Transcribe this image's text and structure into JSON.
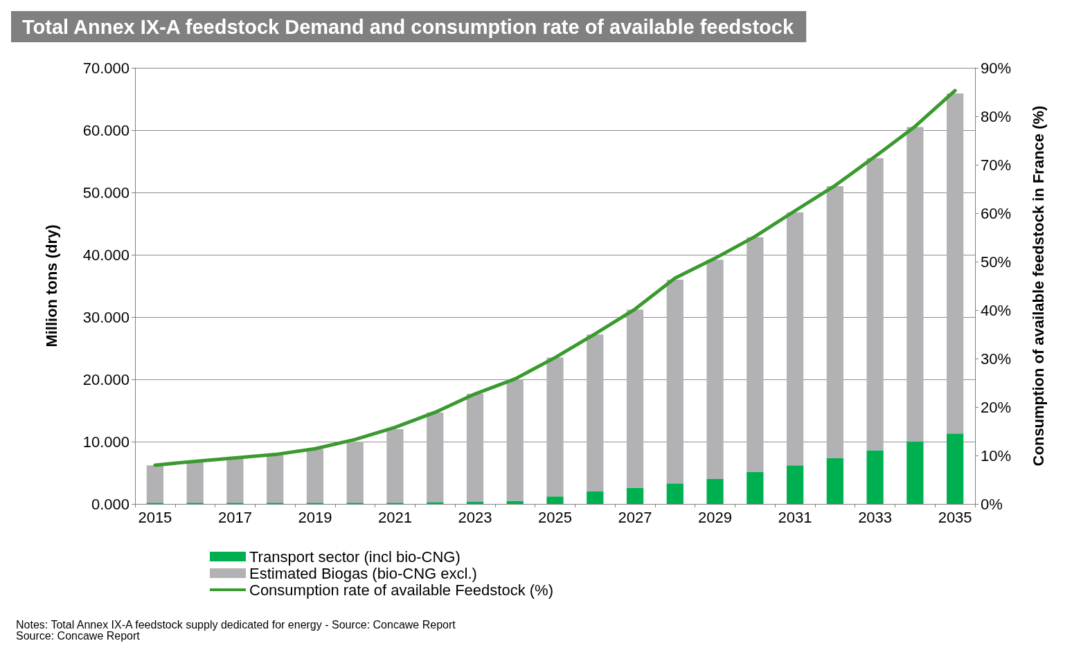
{
  "chart_data": {
    "type": "bar",
    "title": "Total Annex IX-A feedstock Demand and consumption rate of available feedstock",
    "ylabel": "Million tons (dry)",
    "y2label": "Consumption of available feedstock in France (%)",
    "categories": [
      "2015",
      null,
      "2017",
      null,
      "2019",
      null,
      "2021",
      null,
      "2023",
      null,
      "2025",
      null,
      "2027",
      null,
      "2029",
      null,
      "2031",
      null,
      "2033",
      null,
      "2035"
    ],
    "stacked": true,
    "series": [
      {
        "name": "Transport sector (incl bio-CNG)",
        "color": "#00b050",
        "values": [
          0.2,
          0.2,
          0.2,
          0.2,
          0.2,
          0.2,
          0.2,
          0.3,
          0.4,
          0.5,
          1.2,
          2.0,
          2.6,
          3.3,
          4.0,
          5.1,
          6.2,
          7.4,
          8.6,
          10.0,
          11.3
        ]
      },
      {
        "name": "Estimated Biogas (bio-CNG excl.)",
        "color": "#b2b2b4",
        "values": [
          6.0,
          6.5,
          7.1,
          7.7,
          8.6,
          9.8,
          11.8,
          14.4,
          17.3,
          19.5,
          22.3,
          25.2,
          28.6,
          32.7,
          35.2,
          37.7,
          40.6,
          43.6,
          46.9,
          50.5,
          54.6
        ]
      },
      {
        "name": "Consumption rate of available Feedstock (%)",
        "type": "line",
        "axis": "y2",
        "color": "#3a9a2e",
        "values": [
          8.0,
          8.8,
          9.5,
          10.2,
          11.4,
          13.3,
          15.8,
          18.9,
          22.7,
          25.8,
          30.2,
          35.1,
          40.2,
          46.6,
          50.7,
          55.2,
          60.5,
          65.7,
          71.7,
          77.9,
          85.3
        ]
      }
    ],
    "ylim": [
      0,
      70
    ],
    "yticks": [
      {
        "value": 0,
        "label": "0.000"
      },
      {
        "value": 10,
        "label": "10.000"
      },
      {
        "value": 20,
        "label": "20.000"
      },
      {
        "value": 30,
        "label": "30.000"
      },
      {
        "value": 40,
        "label": "40.000"
      },
      {
        "value": 50,
        "label": "50.000"
      },
      {
        "value": 60,
        "label": "60.000"
      },
      {
        "value": 70,
        "label": "70.000"
      }
    ],
    "y2lim": [
      0,
      90
    ],
    "y2ticks": [
      {
        "value": 0,
        "label": "0%"
      },
      {
        "value": 10,
        "label": "10%"
      },
      {
        "value": 20,
        "label": "20%"
      },
      {
        "value": 30,
        "label": "30%"
      },
      {
        "value": 40,
        "label": "40%"
      },
      {
        "value": 50,
        "label": "50%"
      },
      {
        "value": 60,
        "label": "60%"
      },
      {
        "value": 70,
        "label": "70%"
      },
      {
        "value": 80,
        "label": "80%"
      },
      {
        "value": 90,
        "label": "90%"
      }
    ],
    "grid": "y",
    "legend": "bottom left",
    "marker": "none",
    "annotations": [
      "Notes: Total Annex IX-A feedstock supply dedicated for energy - Source: Concawe Report",
      "Source: Concawe Report"
    ]
  }
}
